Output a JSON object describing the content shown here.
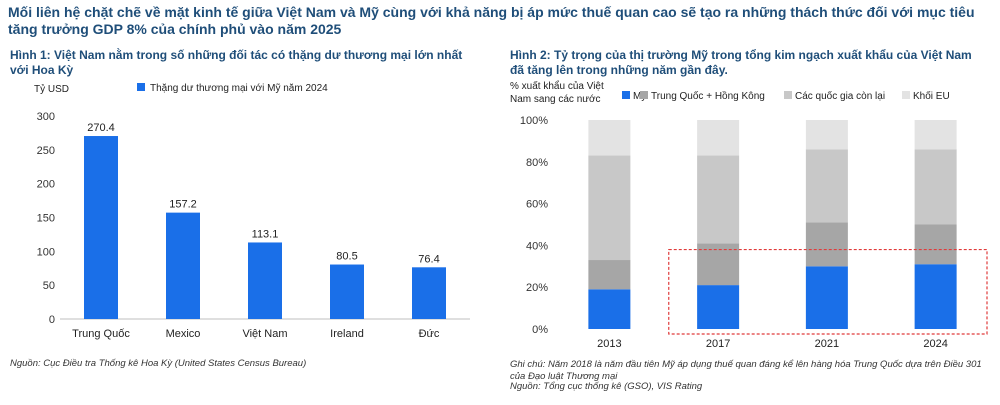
{
  "headline": "Mối liên hệ chặt chẽ về mặt kinh tế giữa Việt Nam và Mỹ cùng với khả năng bị áp mức thuế quan cao sẽ tạo ra những thách thức đối với mục tiêu tăng trưởng GDP 8% của chính phủ vào năm 2025",
  "figure1": {
    "title": "Hình 1: Việt Nam nằm trong số những đối tác có thặng dư thương mại lớn nhất với Hoa Kỳ",
    "source": "Nguồn: Cục Điều tra Thống kê Hoa Kỳ (United States Census Bureau)"
  },
  "figure2": {
    "title": "Hình 2: Tỷ trọng của thị trường Mỹ trong tổng kim ngạch xuất khẩu của Việt Nam đã tăng lên trong những năm gần đây.",
    "note": "Ghi chú: Năm 2018 là năm đầu tiên Mỹ áp dụng thuế quan đáng kể lên hàng hóa Trung Quốc dựa trên Điều 301 của Đạo luật Thương mại",
    "source": "Nguồn: Tổng cục thống kê (GSO), VIS Rating"
  },
  "chart_data": [
    {
      "type": "bar",
      "ylabel": "Tỷ USD",
      "legend": "Thặng dư thương mại với Mỹ năm 2024",
      "categories": [
        "Trung Quốc",
        "Mexico",
        "Việt Nam",
        "Ireland",
        "Đức"
      ],
      "values": [
        270.4,
        157.2,
        113.1,
        80.5,
        76.4
      ],
      "value_labels": [
        "270.4",
        "157.2",
        "113.1",
        "80.5",
        "76.4"
      ],
      "ylim": [
        0,
        300
      ],
      "yticks": [
        "0",
        "50",
        "100",
        "150",
        "200",
        "250",
        "300"
      ],
      "color": "#1a6fe8"
    },
    {
      "type": "bar",
      "stacked": true,
      "ylabel": "% xuất khẩu của Việt Nam sang các nước",
      "categories": [
        "2013",
        "2017",
        "2021",
        "2024"
      ],
      "ylim": [
        0,
        100
      ],
      "yticks": [
        "0%",
        "20%",
        "40%",
        "60%",
        "80%",
        "100%"
      ],
      "series": [
        {
          "name": "Mỹ",
          "values": [
            19,
            21,
            30,
            31
          ],
          "color": "#1a6fe8"
        },
        {
          "name": "Trung Quốc + Hồng Kông",
          "values": [
            14,
            20,
            21,
            19
          ],
          "color": "#a6a6a6"
        },
        {
          "name": "Các quốc gia còn lại",
          "values": [
            50,
            42,
            35,
            36
          ],
          "color": "#c8c8c8"
        },
        {
          "name": "Khối EU",
          "values": [
            17,
            17,
            14,
            14
          ],
          "color": "#e3e3e3"
        }
      ],
      "highlight": {
        "from": "2017",
        "to": "2024",
        "style": "red dashed box"
      }
    }
  ]
}
